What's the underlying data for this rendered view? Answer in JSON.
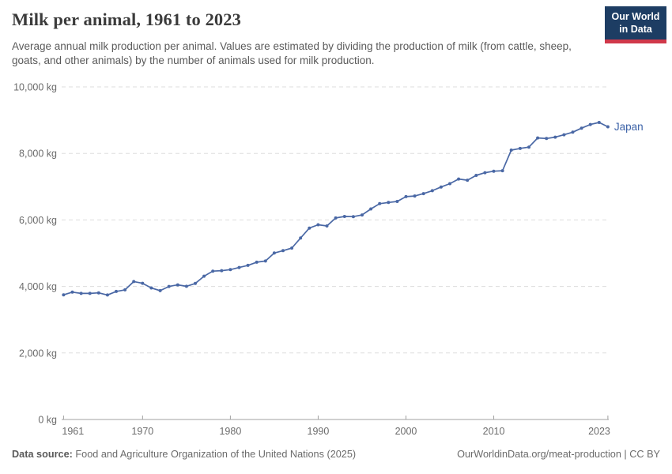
{
  "header": {
    "title": "Milk per animal, 1961 to 2023",
    "subtitle": "Average annual milk production per animal. Values are estimated by dividing the production of milk (from cattle, sheep, goats, and other animals) by the number of animals used for milk production.",
    "logo": {
      "line1": "Our World",
      "line2": "in Data"
    }
  },
  "chart_data": {
    "type": "line",
    "title": "Milk per animal, 1961 to 2023",
    "unit": "kg",
    "xlim": [
      1961,
      2023
    ],
    "ylim": [
      0,
      10000
    ],
    "grid": "horizontal-dashed",
    "legend": "inline-end-of-line-label",
    "x_ticks": [
      1961,
      1970,
      1980,
      1990,
      2000,
      2010,
      2023
    ],
    "y_ticks": [
      {
        "value": 0,
        "label": "0 kg"
      },
      {
        "value": 2000,
        "label": "2,000 kg"
      },
      {
        "value": 4000,
        "label": "4,000 kg"
      },
      {
        "value": 6000,
        "label": "6,000 kg"
      },
      {
        "value": 8000,
        "label": "8,000 kg"
      },
      {
        "value": 10000,
        "label": "10,000 kg"
      }
    ],
    "series": [
      {
        "name": "Japan",
        "x": [
          1961,
          1962,
          1963,
          1964,
          1965,
          1966,
          1967,
          1968,
          1969,
          1970,
          1971,
          1972,
          1973,
          1974,
          1975,
          1976,
          1977,
          1978,
          1979,
          1980,
          1981,
          1982,
          1983,
          1984,
          1985,
          1986,
          1987,
          1988,
          1989,
          1990,
          1991,
          1992,
          1993,
          1994,
          1995,
          1996,
          1997,
          1998,
          1999,
          2000,
          2001,
          2002,
          2003,
          2004,
          2005,
          2006,
          2007,
          2008,
          2009,
          2010,
          2011,
          2012,
          2013,
          2014,
          2015,
          2016,
          2017,
          2018,
          2019,
          2020,
          2021,
          2022,
          2023
        ],
        "values": [
          3748,
          3828,
          3791,
          3790,
          3808,
          3743,
          3851,
          3898,
          4148,
          4095,
          3955,
          3874,
          4000,
          4048,
          4005,
          4090,
          4308,
          4460,
          4475,
          4505,
          4570,
          4635,
          4730,
          4765,
          5005,
          5075,
          5155,
          5455,
          5755,
          5855,
          5820,
          6060,
          6105,
          6100,
          6150,
          6330,
          6490,
          6525,
          6555,
          6700,
          6720,
          6790,
          6880,
          6990,
          7090,
          7230,
          7195,
          7340,
          7420,
          7465,
          7480,
          8100,
          8150,
          8190,
          8465,
          8450,
          8490,
          8560,
          8640,
          8760,
          8870,
          8930,
          8800
        ]
      }
    ]
  },
  "footer": {
    "source_label": "Data source:",
    "source_text": "Food and Agriculture Organization of the United Nations (2025)",
    "credit": "OurWorldinData.org/meat-production | CC BY"
  },
  "colors": {
    "line": "#4a68a5",
    "entity_label": "#3d63a8",
    "logo_background": "#1d3d63",
    "logo_accent_red": "#d0384a",
    "grid": "#dddddd",
    "axis": "#a0a0a0",
    "tick_text": "#6b6b6b",
    "title_text": "#3b3b3b",
    "subtitle_text": "#5a5a5a"
  }
}
